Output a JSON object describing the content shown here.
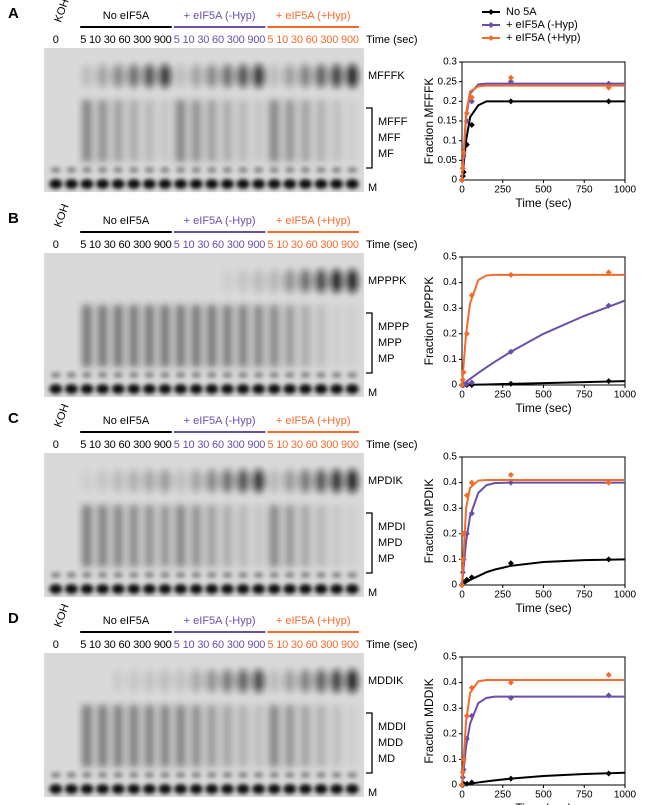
{
  "panels": [
    {
      "label": "A",
      "koh": "KOH",
      "zero": "0",
      "time_unit": "Time (sec)",
      "groups": [
        {
          "name": "No eIF5A",
          "times": "5 10 30 60 300 900",
          "color": "#000000"
        },
        {
          "name": "+ eIF5A (-Hyp)",
          "times": "5 10 30 60 300 900",
          "color": "#6a4fa8"
        },
        {
          "name": "+ eIF5A (+Hyp)",
          "times": "5 10 30 60 300 900",
          "color": "#f26b2a"
        }
      ],
      "product": "MFFFK",
      "intermediates": [
        "MFFF",
        "MFF",
        "MF"
      ],
      "start": "M"
    },
    {
      "label": "B",
      "koh": "KOH",
      "zero": "0",
      "time_unit": "Time (sec)",
      "groups": [
        {
          "name": "No eIF5A",
          "times": "5 10 30 60 300 900",
          "color": "#000000"
        },
        {
          "name": "+ eIF5A (-Hyp)",
          "times": "5 10 30 60 300 900",
          "color": "#6a4fa8"
        },
        {
          "name": "+ eIF5A (+Hyp)",
          "times": "5 10 30 60 300 900",
          "color": "#f26b2a"
        }
      ],
      "product": "MPPPK",
      "intermediates": [
        "MPPP",
        "MPP",
        "MP"
      ],
      "start": "M"
    },
    {
      "label": "C",
      "koh": "KOH",
      "zero": "0",
      "time_unit": "Time (sec)",
      "groups": [
        {
          "name": "No eIF5A",
          "times": "5 10 30 60 300 900",
          "color": "#000000"
        },
        {
          "name": "+ eIF5A (-Hyp)",
          "times": "5 10 30 60 300 900",
          "color": "#6a4fa8"
        },
        {
          "name": "+ eIF5A (+Hyp)",
          "times": "5 10 30 60 300 900",
          "color": "#f26b2a"
        }
      ],
      "product": "MPDIK",
      "intermediates": [
        "MPDI",
        "MPD",
        "MP"
      ],
      "start": "M"
    },
    {
      "label": "D",
      "koh": "KOH",
      "zero": "0",
      "time_unit": "Time (sec)",
      "groups": [
        {
          "name": "No eIF5A",
          "times": "5 10 30 60 300 900",
          "color": "#000000"
        },
        {
          "name": "+ eIF5A (-Hyp)",
          "times": "5 10 30 60 300 900",
          "color": "#6a4fa8"
        },
        {
          "name": "+ eIF5A (+Hyp)",
          "times": "5 10 30 60 300 900",
          "color": "#f26b2a"
        }
      ],
      "product": "MDDIK",
      "intermediates": [
        "MDDI",
        "MDD",
        "MD"
      ],
      "start": "M"
    }
  ],
  "chart_data": [
    {
      "type": "line",
      "xlabel": "Time (sec)",
      "ylabel": "Fraction MFFFK",
      "legend": "top",
      "xlim": [
        0,
        1000
      ],
      "xticks": [
        0,
        250,
        500,
        750,
        1000
      ],
      "ylim": [
        0,
        0.3
      ],
      "yticks": [
        0,
        0.05,
        0.1,
        0.15,
        0.2,
        0.25,
        0.3
      ],
      "x": [
        0,
        5,
        10,
        30,
        60,
        300,
        900
      ],
      "fit_x": [
        0,
        25,
        50,
        100,
        150,
        200,
        300,
        500,
        750,
        1000
      ],
      "series": [
        {
          "name": "No 5A",
          "color": "#000000",
          "values": [
            0,
            0.01,
            0.02,
            0.09,
            0.14,
            0.2,
            0.2
          ],
          "fit": [
            0,
            0.1,
            0.16,
            0.19,
            0.2,
            0.2,
            0.2,
            0.2,
            0.2,
            0.2
          ]
        },
        {
          "name": "+ eIF5A (-Hyp)",
          "color": "#6a4fa8",
          "values": [
            0,
            0.03,
            0.06,
            0.15,
            0.2,
            0.25,
            0.245
          ],
          "fit": [
            0,
            0.16,
            0.22,
            0.243,
            0.245,
            0.245,
            0.245,
            0.245,
            0.245,
            0.245
          ]
        },
        {
          "name": "+ eIF5A (+Hyp)",
          "color": "#f26b2a",
          "values": [
            0,
            0.03,
            0.07,
            0.17,
            0.21,
            0.26,
            0.235
          ],
          "fit": [
            0,
            0.17,
            0.225,
            0.238,
            0.24,
            0.24,
            0.24,
            0.24,
            0.24,
            0.24
          ]
        }
      ]
    },
    {
      "type": "line",
      "xlabel": "Time (sec)",
      "ylabel": "Fraction MPPPK",
      "xlim": [
        0,
        1000
      ],
      "xticks": [
        0,
        250,
        500,
        750,
        1000
      ],
      "ylim": [
        0,
        0.5
      ],
      "yticks": [
        0,
        0.1,
        0.2,
        0.3,
        0.4,
        0.5
      ],
      "x": [
        0,
        5,
        10,
        30,
        60,
        300,
        900
      ],
      "fit_x": [
        0,
        25,
        50,
        100,
        150,
        200,
        300,
        500,
        750,
        1000
      ],
      "series": [
        {
          "color": "#000000",
          "values": [
            0,
            0,
            0,
            0,
            0,
            0.005,
            0.015
          ],
          "fit": [
            0,
            0.0004,
            0.0008,
            0.0015,
            0.002,
            0.003,
            0.0045,
            0.0075,
            0.011,
            0.015
          ]
        },
        {
          "color": "#6a4fa8",
          "values": [
            0,
            0,
            0,
            0.005,
            0.01,
            0.13,
            0.31
          ],
          "fit": [
            0,
            0.012,
            0.024,
            0.047,
            0.069,
            0.09,
            0.13,
            0.2,
            0.27,
            0.33
          ]
        },
        {
          "color": "#f26b2a",
          "values": [
            0,
            0.02,
            0.05,
            0.2,
            0.35,
            0.43,
            0.44
          ],
          "fit": [
            0,
            0.2,
            0.32,
            0.41,
            0.428,
            0.43,
            0.43,
            0.43,
            0.43,
            0.43
          ]
        }
      ]
    },
    {
      "type": "line",
      "xlabel": "Time (sec)",
      "ylabel": "Fraction MPDIK",
      "xlim": [
        0,
        1000
      ],
      "xticks": [
        0,
        250,
        500,
        750,
        1000
      ],
      "ylim": [
        0,
        0.5
      ],
      "yticks": [
        0,
        0.1,
        0.2,
        0.3,
        0.4,
        0.5
      ],
      "x": [
        0,
        5,
        10,
        30,
        60,
        300,
        900
      ],
      "fit_x": [
        0,
        25,
        50,
        100,
        150,
        200,
        300,
        500,
        750,
        1000
      ],
      "series": [
        {
          "color": "#000000",
          "values": [
            0,
            0.005,
            0.01,
            0.02,
            0.03,
            0.085,
            0.1
          ],
          "fit": [
            0,
            0.01,
            0.02,
            0.035,
            0.05,
            0.06,
            0.075,
            0.09,
            0.097,
            0.1
          ]
        },
        {
          "color": "#6a4fa8",
          "values": [
            0,
            0.05,
            0.1,
            0.2,
            0.28,
            0.4,
            0.4
          ],
          "fit": [
            0,
            0.17,
            0.27,
            0.36,
            0.39,
            0.398,
            0.4,
            0.4,
            0.4,
            0.4
          ]
        },
        {
          "color": "#f26b2a",
          "values": [
            0,
            0.1,
            0.2,
            0.35,
            0.4,
            0.43,
            0.4
          ],
          "fit": [
            0,
            0.3,
            0.38,
            0.408,
            0.41,
            0.41,
            0.41,
            0.41,
            0.41,
            0.41
          ]
        }
      ]
    },
    {
      "type": "line",
      "xlabel": "Time (sec)",
      "ylabel": "Fraction MDDIK",
      "xlim": [
        0,
        1000
      ],
      "xticks": [
        0,
        250,
        500,
        750,
        1000
      ],
      "ylim": [
        0,
        0.5
      ],
      "yticks": [
        0,
        0.1,
        0.2,
        0.3,
        0.4,
        0.5
      ],
      "x": [
        0,
        5,
        10,
        30,
        60,
        300,
        900
      ],
      "fit_x": [
        0,
        25,
        50,
        100,
        150,
        200,
        300,
        500,
        750,
        1000
      ],
      "series": [
        {
          "color": "#000000",
          "values": [
            0,
            0,
            0.005,
            0.005,
            0.01,
            0.025,
            0.045
          ],
          "fit": [
            0,
            0.002,
            0.005,
            0.01,
            0.014,
            0.018,
            0.025,
            0.035,
            0.043,
            0.048
          ]
        },
        {
          "color": "#6a4fa8",
          "values": [
            0,
            0.03,
            0.06,
            0.18,
            0.27,
            0.34,
            0.35
          ],
          "fit": [
            0,
            0.15,
            0.24,
            0.32,
            0.34,
            0.345,
            0.345,
            0.345,
            0.345,
            0.345
          ]
        },
        {
          "color": "#f26b2a",
          "values": [
            0,
            0.05,
            0.1,
            0.27,
            0.38,
            0.4,
            0.43
          ],
          "fit": [
            0,
            0.25,
            0.36,
            0.405,
            0.41,
            0.41,
            0.41,
            0.41,
            0.41,
            0.41
          ]
        }
      ]
    }
  ]
}
